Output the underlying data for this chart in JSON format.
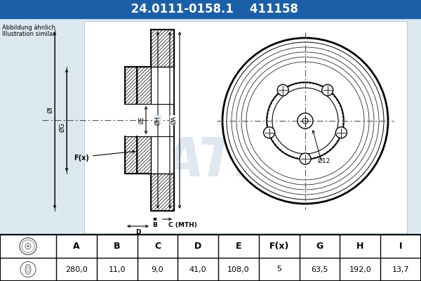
{
  "title_part_number": "24.0111-0158.1",
  "title_code": "411158",
  "header_bg": "#1a5fa8",
  "header_text_color": "#ffffff",
  "body_bg": "#dce8f0",
  "note_line1": "Abbildung ähnlich",
  "note_line2": "Illustration similar",
  "dim_label": "Ø12",
  "table_headers": [
    "A",
    "B",
    "C",
    "D",
    "E",
    "F(x)",
    "G",
    "H",
    "I"
  ],
  "table_values": [
    "280,0",
    "11,0",
    "9,0",
    "41,0",
    "108,0",
    "5",
    "63,5",
    "192,0",
    "13,7"
  ]
}
